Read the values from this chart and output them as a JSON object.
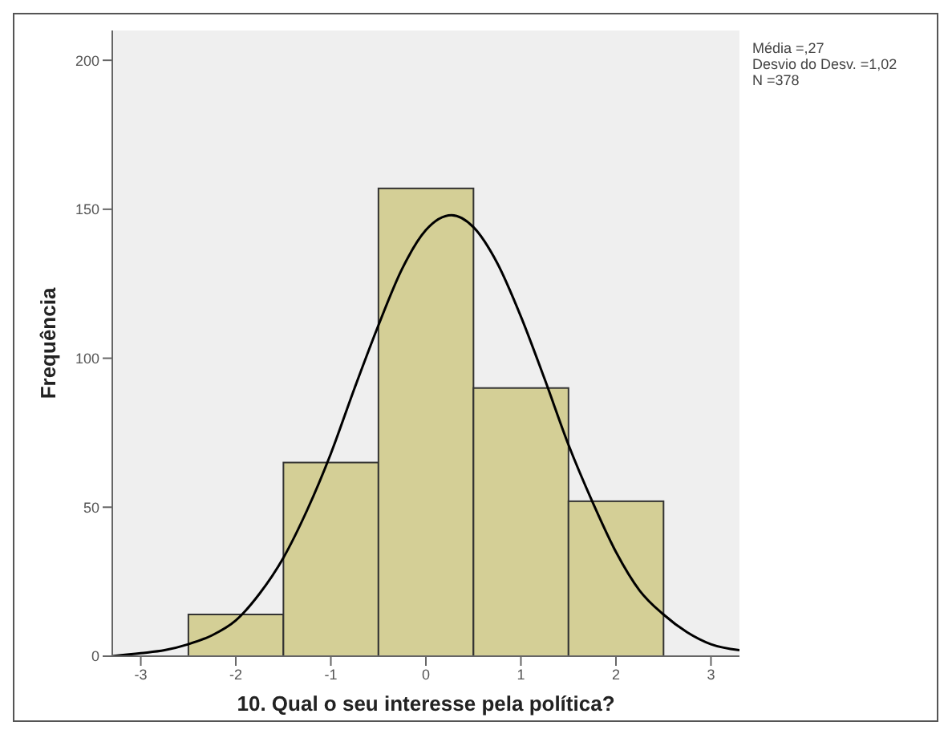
{
  "chart_data": {
    "type": "histogram",
    "xlabel": "10. Qual o seu interesse pela política?",
    "ylabel": "Frequência",
    "bins": [
      -2.5,
      -1.5,
      -0.5,
      0.5,
      1.5,
      2.5
    ],
    "values": [
      14,
      65,
      157,
      90,
      52
    ],
    "color": "#d4cf96",
    "series": [
      {
        "type": "line",
        "color": "#000000",
        "x": [
          -3.3,
          -3,
          -2.75,
          -2.5,
          -2.25,
          -2,
          -1.75,
          -1.5,
          -1.25,
          -1,
          -0.75,
          -0.5,
          -0.25,
          0,
          0.27,
          0.5,
          0.75,
          1,
          1.25,
          1.5,
          1.75,
          2,
          2.25,
          2.5,
          2.75,
          3,
          3.3
        ],
        "values": [
          0,
          1,
          2,
          4,
          7,
          12,
          21,
          33,
          49,
          68,
          90,
          111,
          130,
          143,
          148,
          144,
          132,
          114,
          93,
          71,
          52,
          35,
          22,
          14,
          8,
          4,
          2
        ]
      }
    ],
    "xlim": [
      -3.3,
      3.3
    ],
    "xticks": [
      -3,
      -2,
      -1,
      0,
      1,
      2,
      3
    ],
    "ylim": [
      0,
      210
    ],
    "yticks": [
      0,
      50,
      100,
      150,
      200
    ],
    "annotations": [
      "Média =,27",
      "Desvio do Desv. =1,02",
      "N =378"
    ]
  }
}
